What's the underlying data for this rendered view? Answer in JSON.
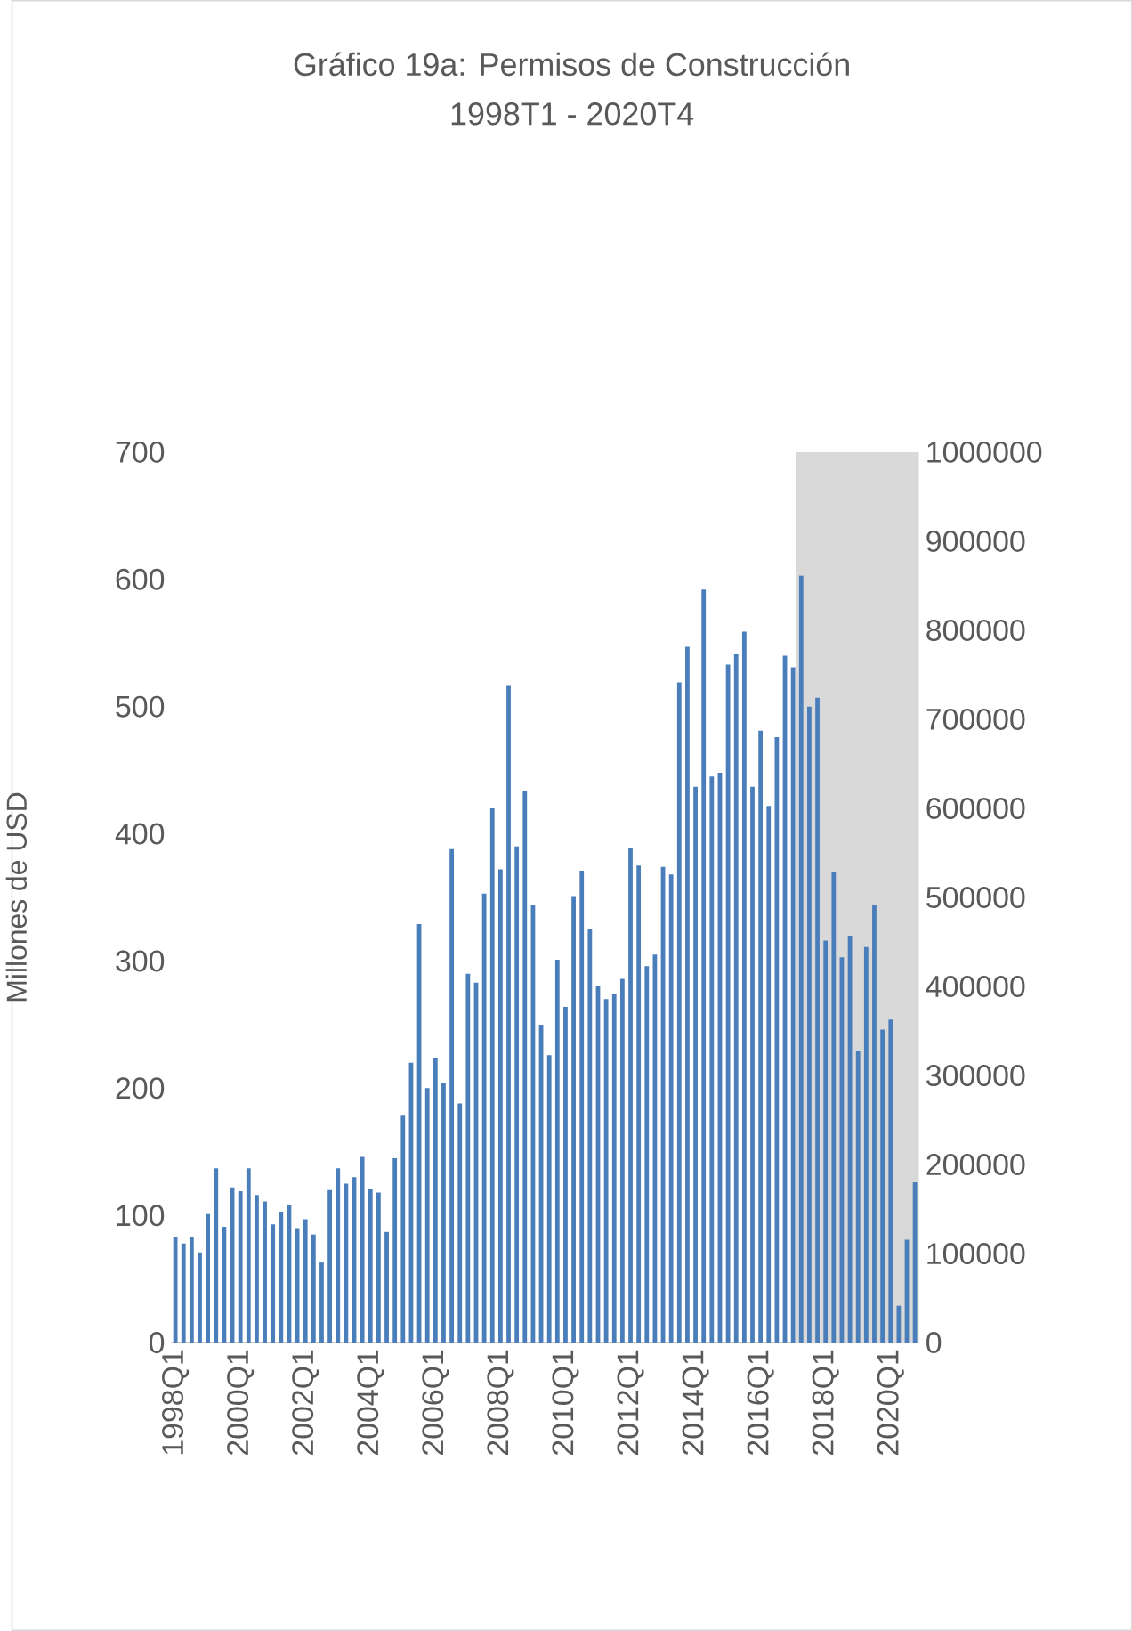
{
  "chart_data": {
    "type": "bar",
    "title": "Gráfico 19a:  Permisos de Construcción",
    "subtitle": "1998T1  -   2020T4",
    "ylabel": "Millones de USD",
    "categories": [
      "1998Q1",
      null,
      null,
      null,
      null,
      null,
      null,
      null,
      "2000Q1",
      null,
      null,
      null,
      null,
      null,
      null,
      null,
      "2002Q1",
      null,
      null,
      null,
      null,
      null,
      null,
      null,
      "2004Q1",
      null,
      null,
      null,
      null,
      null,
      null,
      null,
      "2006Q1",
      null,
      null,
      null,
      null,
      null,
      null,
      null,
      "2008Q1",
      null,
      null,
      null,
      null,
      null,
      null,
      null,
      "2010Q1",
      null,
      null,
      null,
      null,
      null,
      null,
      null,
      "2012Q1",
      null,
      null,
      null,
      null,
      null,
      null,
      null,
      "2014Q1",
      null,
      null,
      null,
      null,
      null,
      null,
      null,
      "2016Q1",
      null,
      null,
      null,
      null,
      null,
      null,
      null,
      "2018Q1",
      null,
      null,
      null,
      null,
      null,
      null,
      null,
      "2020Q1",
      null,
      null,
      null
    ],
    "values": [
      83,
      78,
      83,
      71,
      101,
      137,
      91,
      122,
      119,
      137,
      116,
      111,
      93,
      103,
      108,
      90,
      97,
      85,
      63,
      120,
      137,
      125,
      130,
      146,
      121,
      118,
      87,
      145,
      179,
      220,
      329,
      200,
      224,
      204,
      388,
      188,
      290,
      283,
      353,
      420,
      372,
      517,
      390,
      434,
      344,
      250,
      226,
      301,
      264,
      351,
      371,
      325,
      280,
      270,
      274,
      286,
      389,
      375,
      296,
      305,
      374,
      368,
      519,
      547,
      437,
      592,
      445,
      448,
      533,
      541,
      559,
      437,
      481,
      422,
      476,
      540,
      531,
      603,
      500,
      507,
      316,
      370,
      303,
      320,
      229,
      311,
      344,
      246,
      254,
      29,
      81,
      126
    ],
    "color": "#4a7ebb",
    "ylim": [
      0,
      700
    ],
    "yticks": [
      0,
      100,
      200,
      300,
      400,
      500,
      600,
      700
    ],
    "y2lim": [
      0,
      1000000
    ],
    "y2ticks": [
      0,
      100000,
      200000,
      300000,
      400000,
      500000,
      600000,
      700000,
      800000,
      900000,
      1000000
    ]
  }
}
